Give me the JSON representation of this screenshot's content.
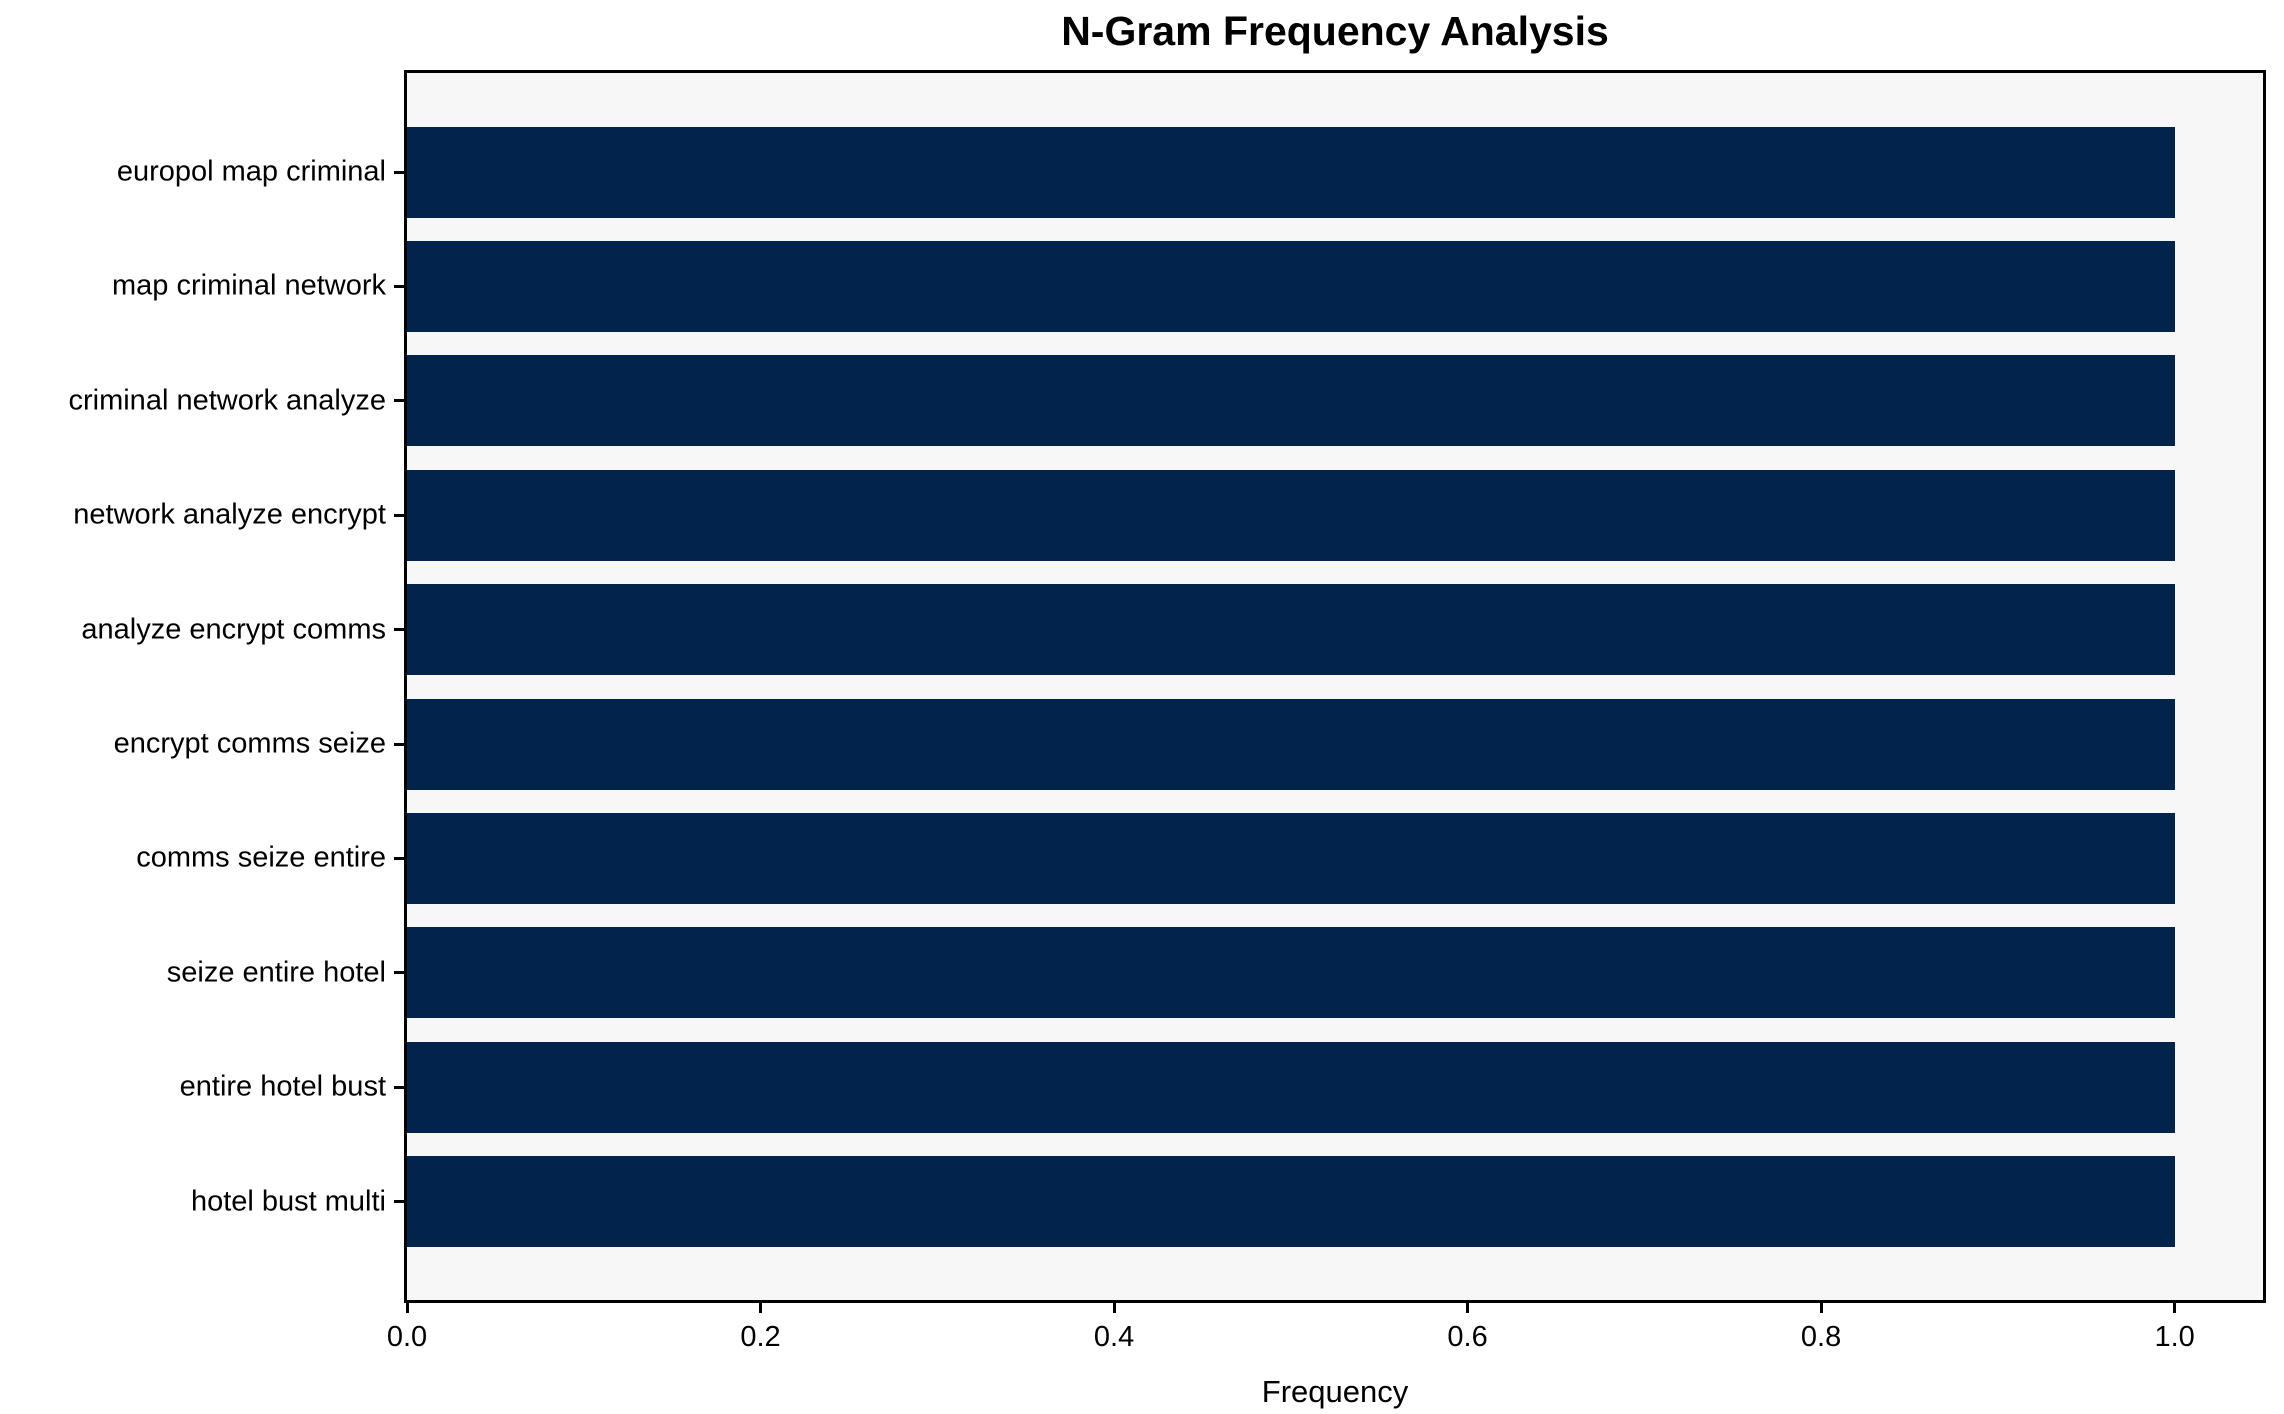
{
  "chart_data": {
    "type": "bar",
    "orientation": "horizontal",
    "title": "N-Gram Frequency Analysis",
    "xlabel": "Frequency",
    "ylabel": "",
    "categories": [
      "europol map criminal",
      "map criminal network",
      "criminal network analyze",
      "network analyze encrypt",
      "analyze encrypt comms",
      "encrypt comms seize",
      "comms seize entire",
      "seize entire hotel",
      "entire hotel bust",
      "hotel bust multi"
    ],
    "values": [
      1.0,
      1.0,
      1.0,
      1.0,
      1.0,
      1.0,
      1.0,
      1.0,
      1.0,
      1.0
    ],
    "xlim": [
      0.0,
      1.05
    ],
    "xticks": [
      0.0,
      0.2,
      0.4,
      0.6,
      0.8,
      1.0
    ],
    "xtick_labels": [
      "0.0",
      "0.2",
      "0.4",
      "0.6",
      "0.8",
      "1.0"
    ],
    "grid": false,
    "legend": null,
    "bar_color": "#02234c",
    "plot_background": "#f7f7f7",
    "figure_background": "#ffffff",
    "spine_color": "#000000",
    "text_color": "#000000"
  }
}
